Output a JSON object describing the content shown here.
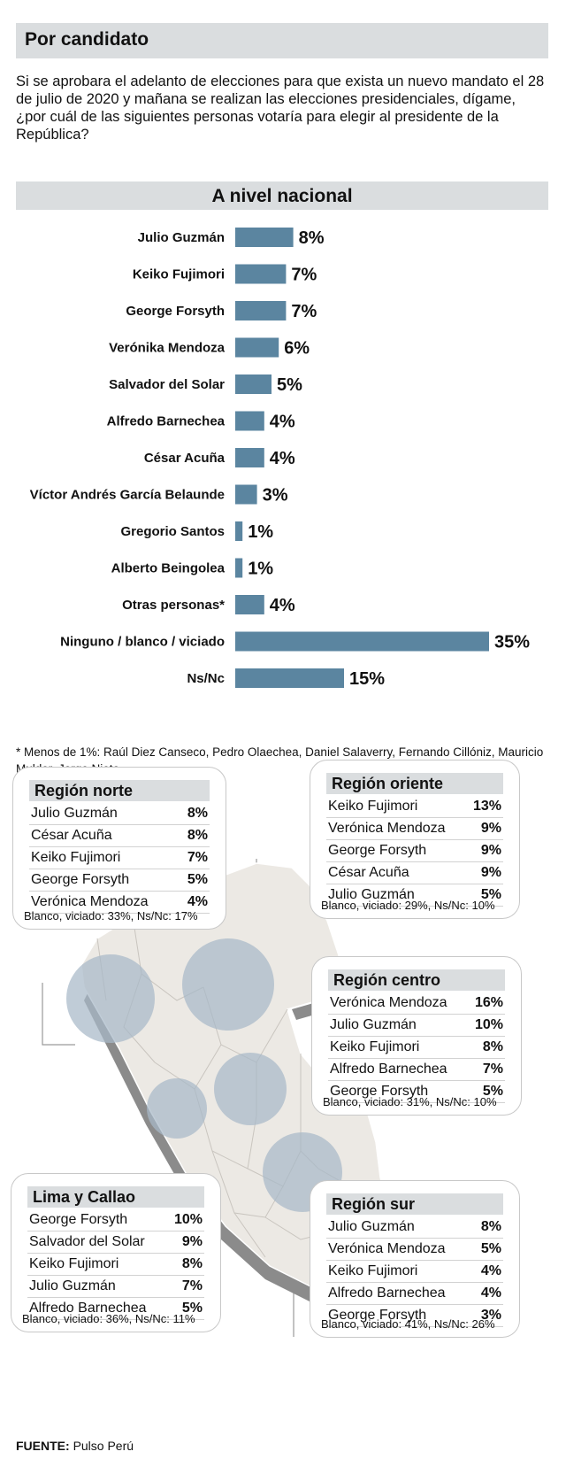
{
  "header": {
    "title": "Por candidato"
  },
  "question": "Si se aprobara el adelanto de elecciones para que exista un nuevo mandato el 28 de julio de 2020 y mañana se realizan las elecciones presidenciales, dígame, ¿por cuál de las siguientes personas votaría para elegir al presidente de la República?",
  "national": {
    "title": "A nivel nacional"
  },
  "chart_data": {
    "type": "bar",
    "orientation": "horizontal",
    "title": "A nivel nacional",
    "unit": "%",
    "categories": [
      "Julio Guzmán",
      "Keiko Fujimori",
      "George Forsyth",
      "Verónika Mendoza",
      "Salvador del Solar",
      "Alfredo Barnechea",
      "César Acuña",
      "Víctor Andrés García Belaunde",
      "Gregorio Santos",
      "Alberto Beingolea",
      "Otras personas*",
      "Ninguno / blanco / viciado",
      "Ns/Nc"
    ],
    "values": [
      8,
      7,
      7,
      6,
      5,
      4,
      4,
      3,
      1,
      1,
      4,
      35,
      15
    ],
    "labels": [
      "8%",
      "7%",
      "7%",
      "6%",
      "5%",
      "4%",
      "4%",
      "3%",
      "1%",
      "1%",
      "4%",
      "35%",
      "15%"
    ],
    "bar_color": "#5b85a0"
  },
  "footnote": "* Menos de 1%: Raúl Diez Canseco, Pedro Olaechea, Daniel Salaverry, Fernando Cillóniz, Mauricio Mulder, Jorge Nieto.",
  "regions": {
    "norte": {
      "title": "Región norte",
      "rows": [
        {
          "name": "Julio Guzmán",
          "pct": "8%"
        },
        {
          "name": "César Acuña",
          "pct": "8%"
        },
        {
          "name": "Keiko Fujimori",
          "pct": "7%"
        },
        {
          "name": "George Forsyth",
          "pct": "5%"
        },
        {
          "name": "Verónica Mendoza",
          "pct": "4%"
        }
      ],
      "note": "Blanco, viciado: 33%, Ns/Nc: 17%"
    },
    "oriente": {
      "title": "Región oriente",
      "rows": [
        {
          "name": "Keiko Fujimori",
          "pct": "13%"
        },
        {
          "name": "Verónica Mendoza",
          "pct": "9%"
        },
        {
          "name": "George Forsyth",
          "pct": "9%"
        },
        {
          "name": "César Acuña",
          "pct": "9%"
        },
        {
          "name": "Julio Guzmán",
          "pct": "5%"
        }
      ],
      "note": "Blanco, viciado: 29%, Ns/Nc: 10%"
    },
    "centro": {
      "title": "Región centro",
      "rows": [
        {
          "name": "Verónica Mendoza",
          "pct": "16%"
        },
        {
          "name": "Julio Guzmán",
          "pct": "10%"
        },
        {
          "name": "Keiko Fujimori",
          "pct": "8%"
        },
        {
          "name": "Alfredo Barnechea",
          "pct": "7%"
        },
        {
          "name": "George Forsyth",
          "pct": "5%"
        }
      ],
      "note": "Blanco, viciado: 31%, Ns/Nc: 10%"
    },
    "lima": {
      "title": "Lima y Callao",
      "rows": [
        {
          "name": "George Forsyth",
          "pct": "10%"
        },
        {
          "name": "Salvador del Solar",
          "pct": "9%"
        },
        {
          "name": "Keiko Fujimori",
          "pct": "8%"
        },
        {
          "name": "Julio Guzmán",
          "pct": "7%"
        },
        {
          "name": "Alfredo Barnechea",
          "pct": "5%"
        }
      ],
      "note": "Blanco, viciado: 36%, Ns/Nc: 11%"
    },
    "sur": {
      "title": "Región sur",
      "rows": [
        {
          "name": "Julio Guzmán",
          "pct": "8%"
        },
        {
          "name": "Verónica Mendoza",
          "pct": "5%"
        },
        {
          "name": "Keiko Fujimori",
          "pct": "4%"
        },
        {
          "name": "Alfredo Barnechea",
          "pct": "4%"
        },
        {
          "name": "George Forsyth",
          "pct": "3%"
        }
      ],
      "note": "Blanco, viciado: 41%, Ns/Nc: 26%"
    }
  },
  "source": {
    "label": "FUENTE:",
    "value": "Pulso Perú"
  }
}
